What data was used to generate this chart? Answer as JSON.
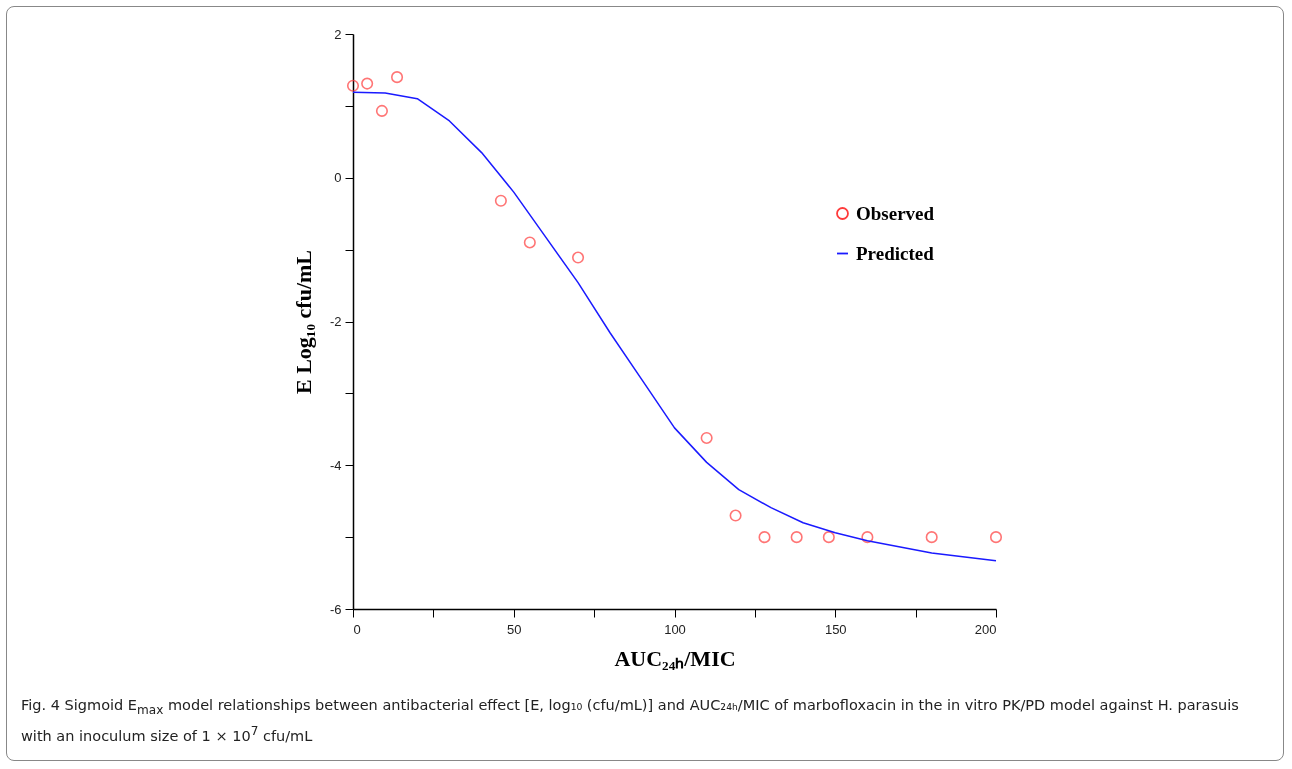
{
  "chart_data": {
    "type": "scatter",
    "xlabel": "AUC₂₄ₕ/MIC",
    "ylabel": "E Log₁₀ cfu/mL",
    "annotations": [
      "Fig. 4 Sigmoid E$_{max}$ model relationships between antibacterial effect [E, log₁₀ (cfu/mL)] and AUC₂₄ₕ/MIC of marbofloxacin in the in vitro PK/PD model against H. parasuis with an inoculum size of 1 × 10$^{7}$ cfu/mL"
    ],
    "xlim": [
      0,
      200
    ],
    "xticks": [
      0,
      {
        "value": 25,
        "label": null
      },
      50,
      {
        "value": 75,
        "label": null
      },
      100,
      {
        "value": 125,
        "label": null
      },
      150,
      {
        "value": 175,
        "label": null
      },
      200
    ],
    "ylim": [
      -6,
      2
    ],
    "yticks": [
      -6,
      {
        "value": -5,
        "label": null
      },
      -4,
      {
        "value": -3,
        "label": null
      },
      -2,
      {
        "value": -1,
        "label": null
      },
      0,
      {
        "value": 1,
        "label": null
      },
      2
    ],
    "legend": "right",
    "grid": false,
    "series": [
      {
        "name": "Observed",
        "marker": "circle",
        "color": "#ff3b3b",
        "x": [
          0,
          4.4,
          9,
          13.7,
          46,
          55,
          70,
          110,
          119,
          128,
          138,
          148,
          160,
          180,
          200
        ],
        "values": [
          1.28,
          1.31,
          0.93,
          1.4,
          -0.32,
          -0.9,
          -1.11,
          -3.62,
          -4.7,
          -5,
          -5,
          -5,
          -5,
          -5,
          -5
        ]
      },
      {
        "name": "Predicted",
        "type": "line",
        "marker": "none",
        "color": "#1a1aff",
        "x": [
          0,
          10,
          20,
          30,
          40,
          50,
          60,
          70,
          80,
          90,
          100,
          110,
          120,
          130,
          140,
          150,
          160,
          180,
          200
        ],
        "values": [
          1.19,
          1.18,
          1.1,
          0.79,
          0.35,
          -0.2,
          -0.83,
          -1.46,
          -2.16,
          -2.82,
          -3.48,
          -3.96,
          -4.34,
          -4.59,
          -4.8,
          -4.94,
          -5.05,
          -5.22,
          -5.33
        ]
      }
    ]
  }
}
